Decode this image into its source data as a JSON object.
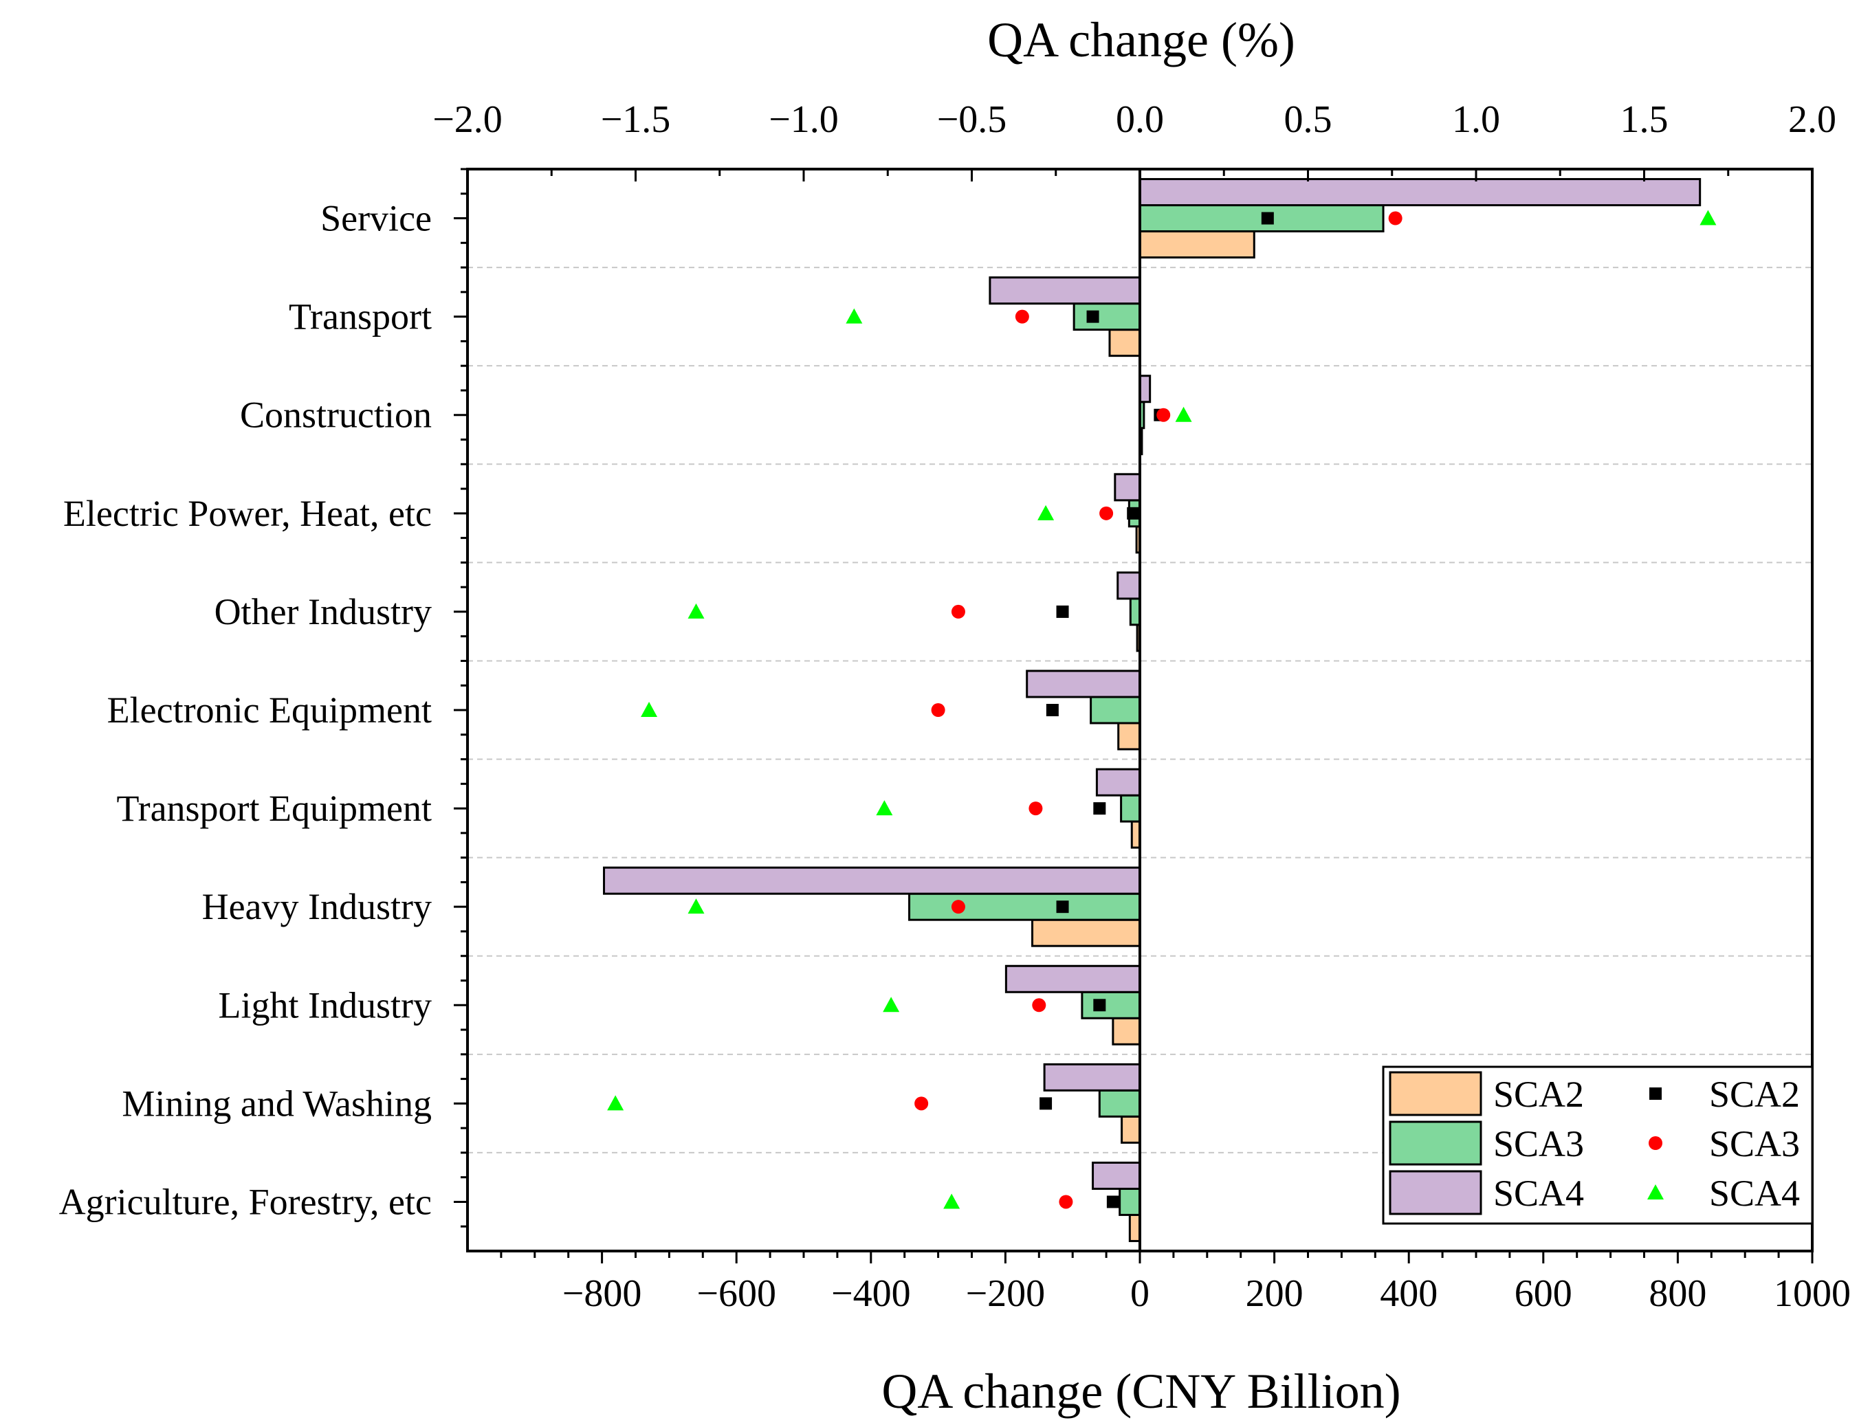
{
  "chart_data": {
    "type": "bar",
    "orientation": "horizontal",
    "categories": [
      "Service",
      "Transport",
      "Construction",
      "Electric Power, Heat, etc",
      "Other Industry",
      "Electronic Equipment",
      "Transport Equipment",
      "Heavy Industry",
      "Light Industry",
      "Mining and Washing",
      "Agriculture, Forestry, etc"
    ],
    "bar_axis": {
      "title": "QA change (CNY Billion)",
      "range": [
        -1000,
        1000
      ],
      "ticks": [
        -800,
        -600,
        -400,
        -200,
        0,
        200,
        400,
        600,
        800,
        1000
      ],
      "tick_labels": [
        "−800",
        "−600",
        "−400",
        "−200",
        "0",
        "200",
        "400",
        "600",
        "800",
        "1000"
      ]
    },
    "marker_axis": {
      "title": "QA change (%)",
      "range": [
        -2.0,
        2.0
      ],
      "ticks": [
        -2.0,
        -1.5,
        -1.0,
        -0.5,
        0.0,
        0.5,
        1.0,
        1.5,
        2.0
      ],
      "tick_labels": [
        "−2.0",
        "−1.5",
        "−1.0",
        "−0.5",
        "0.0",
        "0.5",
        "1.0",
        "1.5",
        "2.0"
      ]
    },
    "bar_series": [
      {
        "name": "SCA2",
        "color": "#FFCC99",
        "values": [
          170,
          -45,
          3,
          -5,
          -4,
          -32,
          -12,
          -160,
          -40,
          -27,
          -15
        ]
      },
      {
        "name": "SCA3",
        "color": "#80D89C",
        "values": [
          362,
          -98,
          6,
          -16,
          -14,
          -73,
          -28,
          -343,
          -86,
          -60,
          -30
        ]
      },
      {
        "name": "SCA4",
        "color": "#CCB3D6",
        "values": [
          833,
          -223,
          15,
          -37,
          -33,
          -168,
          -64,
          -797,
          -199,
          -142,
          -70
        ]
      }
    ],
    "marker_series": [
      {
        "name": "SCA2",
        "marker": "square",
        "color": "#000000",
        "values": [
          0.38,
          -0.14,
          0.06,
          -0.02,
          -0.23,
          -0.26,
          -0.12,
          -0.23,
          -0.12,
          -0.28,
          -0.08
        ]
      },
      {
        "name": "SCA3",
        "marker": "circle",
        "color": "#FF0000",
        "values": [
          0.76,
          -0.35,
          0.07,
          -0.1,
          -0.54,
          -0.6,
          -0.31,
          -0.54,
          -0.3,
          -0.65,
          -0.22
        ]
      },
      {
        "name": "SCA4",
        "marker": "triangle",
        "color": "#00FF00",
        "values": [
          1.69,
          -0.85,
          0.13,
          -0.28,
          -1.32,
          -1.46,
          -0.76,
          -1.32,
          -0.74,
          -1.56,
          -0.56
        ]
      }
    ],
    "grid": "horizontal dashed separators between categories",
    "legend_position": "bottom-right"
  }
}
